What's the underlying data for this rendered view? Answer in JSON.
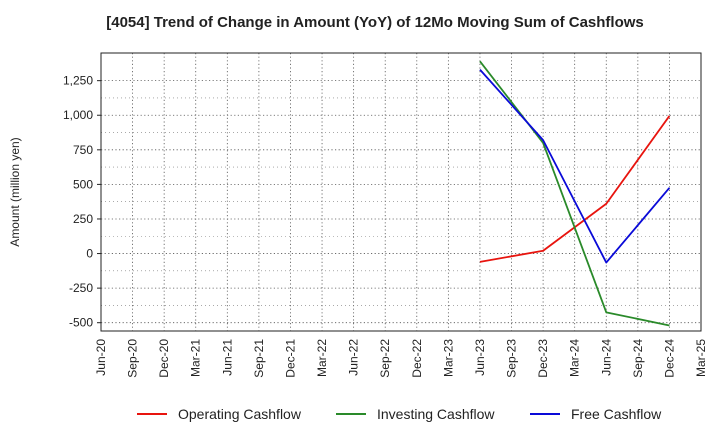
{
  "chart_data": {
    "type": "line",
    "title": "[4054]  Trend of Change in Amount (YoY) of 12Mo Moving Sum of Cashflows",
    "xlabel": "",
    "ylabel": "Amount (million yen)",
    "ylim": [
      -560,
      1450
    ],
    "yticks": [
      -500,
      -250,
      0,
      250,
      500,
      750,
      1000,
      1250
    ],
    "ytick_labels": [
      "-500",
      "-250",
      "0",
      "250",
      "500",
      "750",
      "1,000",
      "1,250"
    ],
    "categories": [
      "Jun-20",
      "Sep-20",
      "Dec-20",
      "Mar-21",
      "Jun-21",
      "Sep-21",
      "Dec-21",
      "Mar-22",
      "Jun-22",
      "Sep-22",
      "Dec-22",
      "Mar-23",
      "Jun-23",
      "Sep-23",
      "Dec-23",
      "Mar-24",
      "Jun-24",
      "Sep-24",
      "Dec-24",
      "Mar-25"
    ],
    "grid": true,
    "legend_position": "bottom",
    "series": [
      {
        "name": "Operating Cashflow",
        "color": "#e8140e",
        "values": [
          null,
          null,
          null,
          null,
          null,
          null,
          null,
          null,
          null,
          null,
          null,
          null,
          -60,
          null,
          20,
          null,
          360,
          null,
          995,
          null
        ]
      },
      {
        "name": "Investing Cashflow",
        "color": "#2a8a2a",
        "values": [
          null,
          null,
          null,
          null,
          null,
          null,
          null,
          null,
          null,
          null,
          null,
          null,
          1390,
          null,
          800,
          null,
          -425,
          null,
          -520,
          null
        ]
      },
      {
        "name": "Free Cashflow",
        "color": "#0a0ad8",
        "values": [
          null,
          null,
          null,
          null,
          null,
          null,
          null,
          null,
          null,
          null,
          null,
          null,
          1330,
          null,
          820,
          null,
          -65,
          null,
          475,
          null
        ]
      }
    ]
  }
}
